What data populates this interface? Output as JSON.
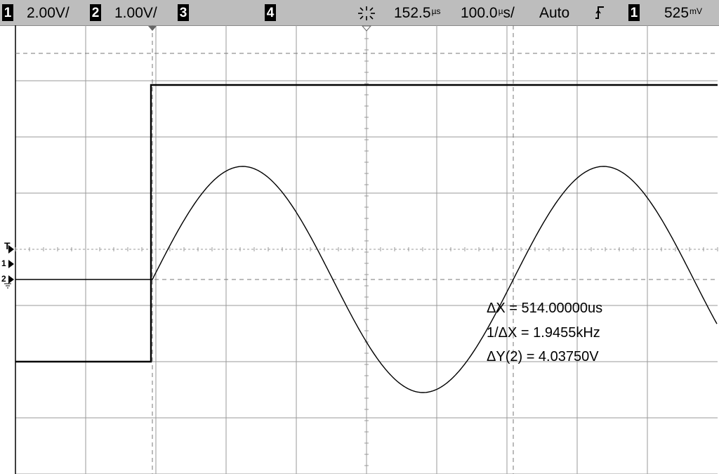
{
  "status_bar": {
    "ch1_number": "1",
    "ch1_scale": "2.00V/",
    "ch2_number": "2",
    "ch2_scale": "1.00V/",
    "ch3_number": "3",
    "ch4_number": "4",
    "run_icon": "acquisition-run-icon",
    "time_delay": "152.5",
    "time_delay_unit": "µs",
    "time_scale": "100.0",
    "time_scale_unit": "s/",
    "time_scale_prefix": "µ",
    "trigger_mode": "Auto",
    "trigger_slope_icon": "rising-edge-icon",
    "trigger_source": "1",
    "trigger_level": "525",
    "trigger_level_unit": "mV"
  },
  "screen": {
    "left_markers": {
      "trigger": "T",
      "ch1": "1",
      "ch2": "2"
    },
    "measurements": {
      "delta_x": "ΔX = 514.00000us",
      "inv_delta_x": "1/ΔX = 1.9455kHz",
      "delta_y": "ΔY(2) = 4.03750V"
    },
    "colors": {
      "grid": "#9a9a9a",
      "trace": "#000000",
      "background": "#ffffff"
    }
  },
  "waveforms": {
    "square_wave": {
      "label": "ch1",
      "low_volts": -2.0,
      "high_volts": 3.0,
      "edge_time_us": -152.5
    },
    "sine_wave": {
      "label": "ch2",
      "frequency_khz": 1.9455,
      "amplitude_volts": 2.02,
      "start_time_us": -152.5
    },
    "cursors": {
      "x1_us": -152.5,
      "x2_us": 361.5
    }
  }
}
